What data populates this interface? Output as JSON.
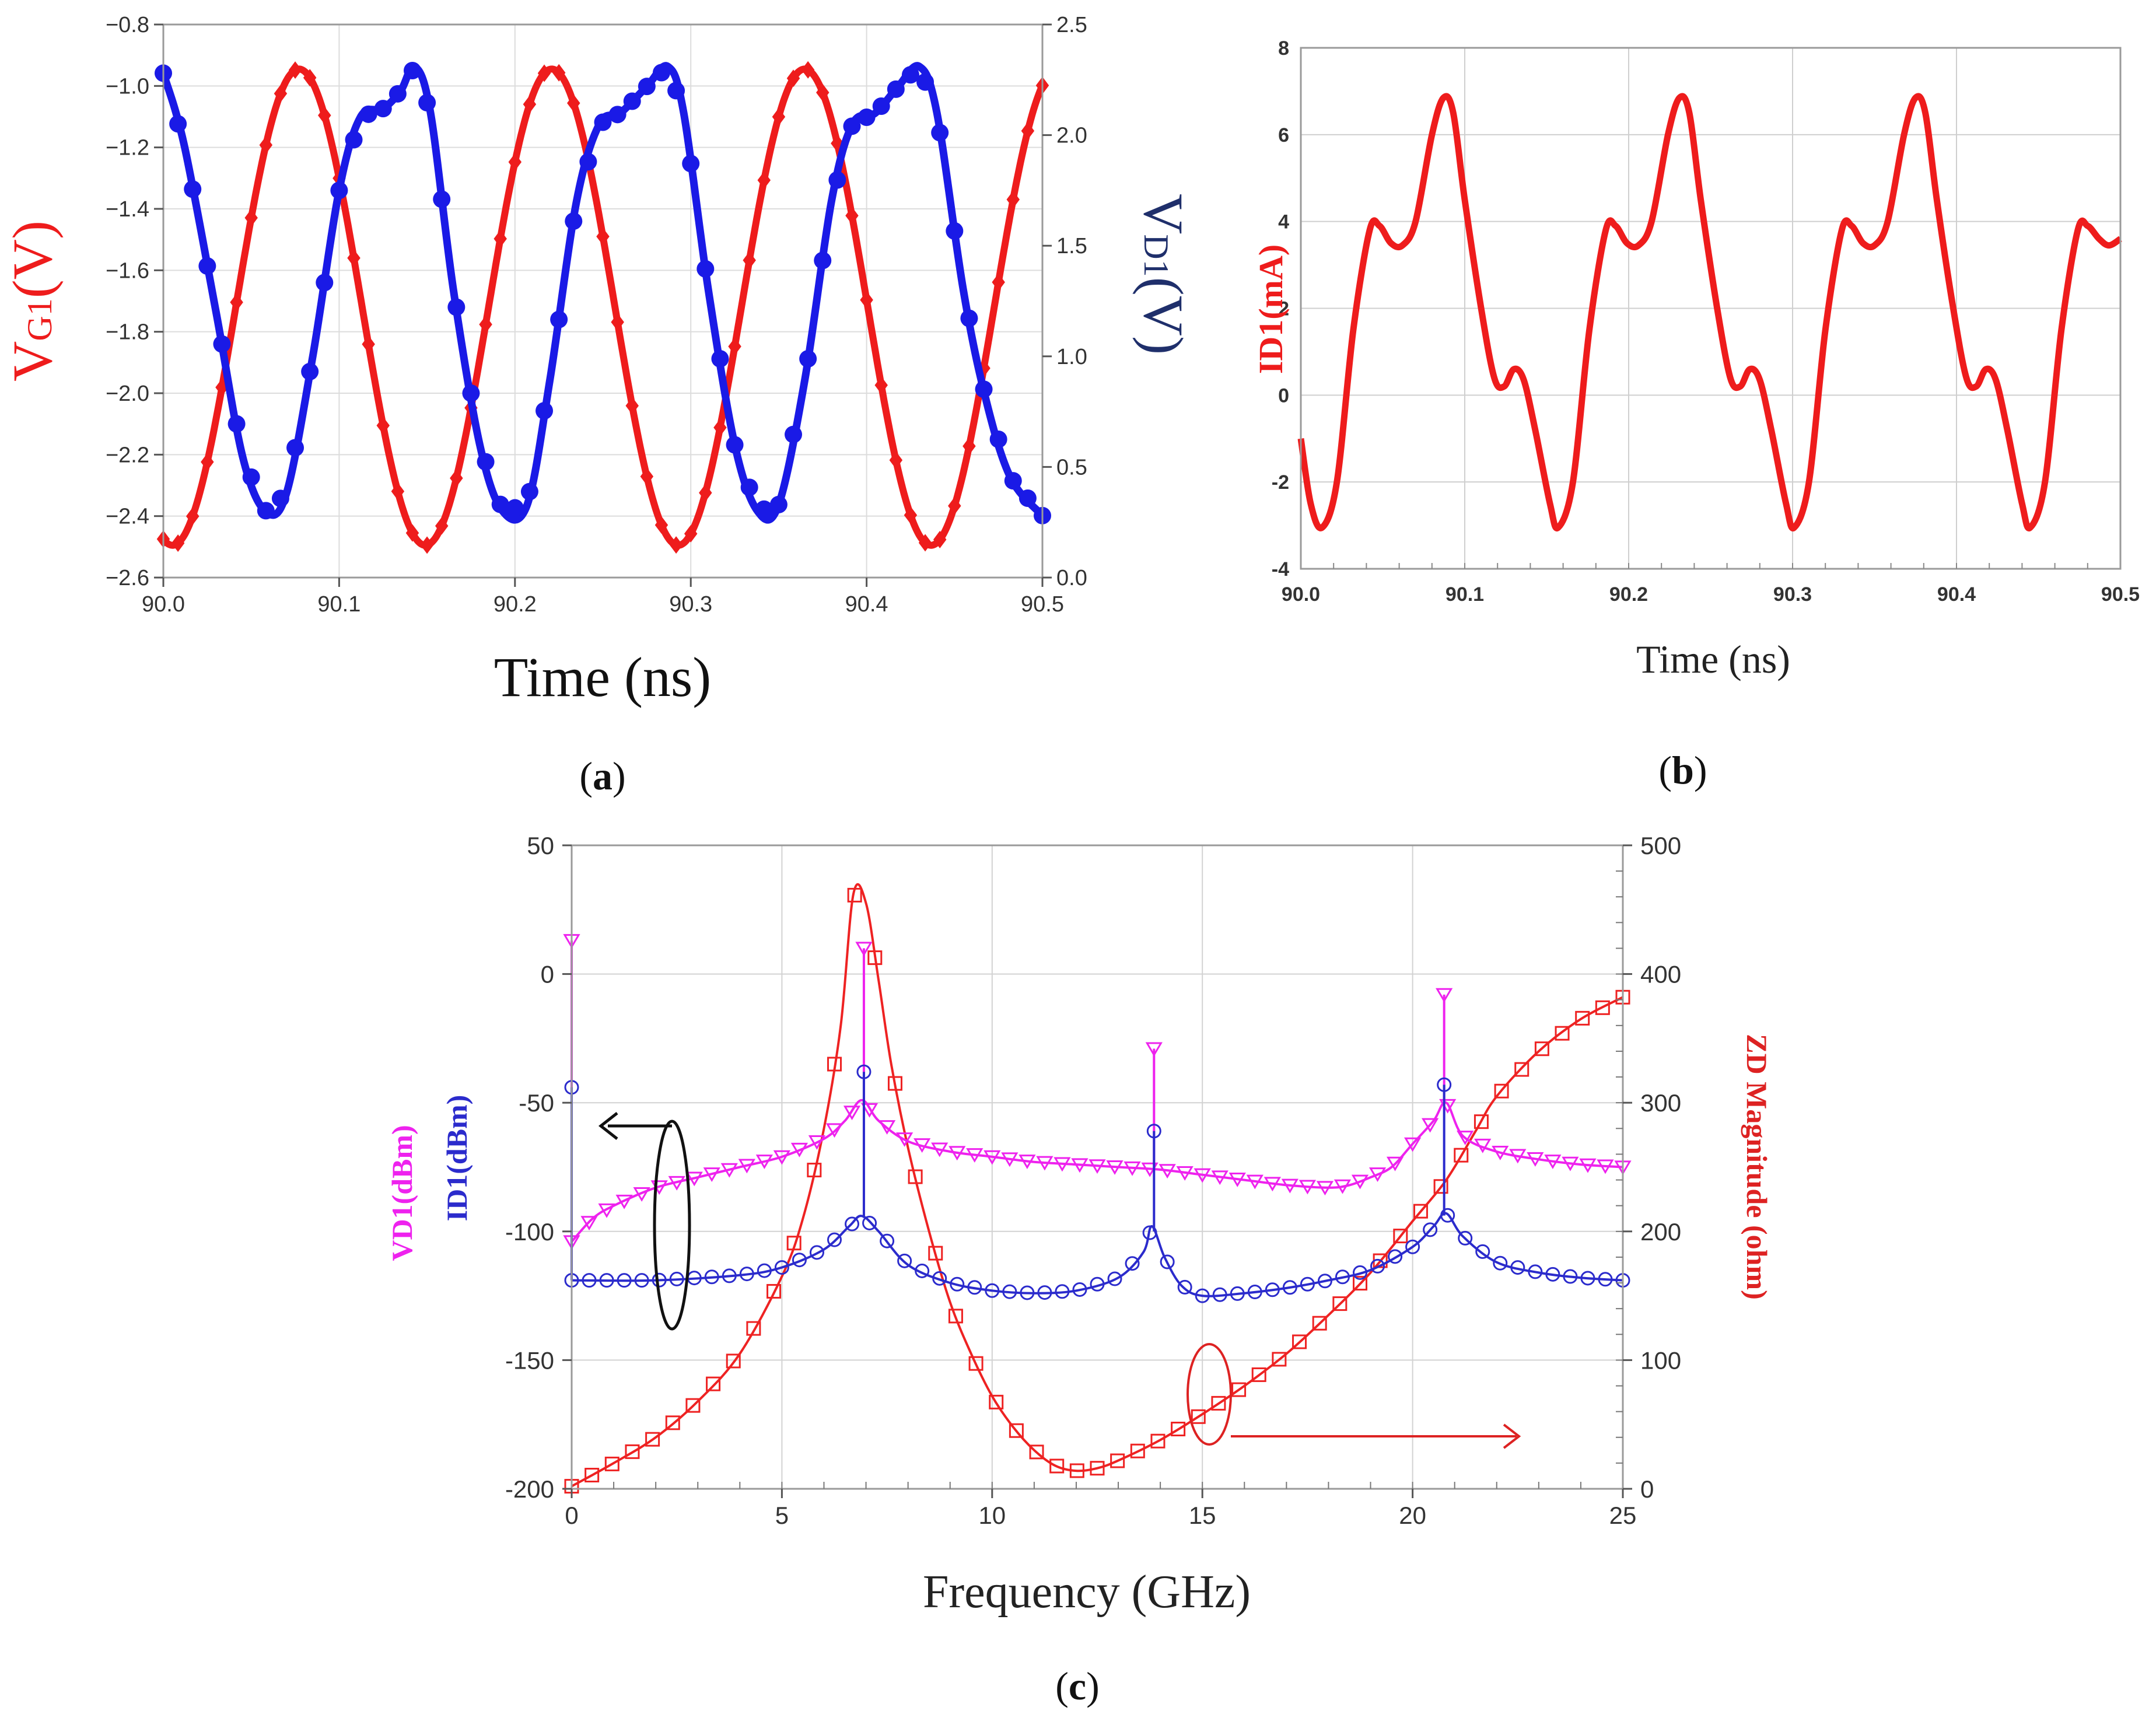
{
  "chart_data": [
    {
      "id": "a",
      "type": "line",
      "panel_label_open": "(",
      "panel_label_letter": "a",
      "panel_label_close": ")",
      "xlabel": "Time (ns)",
      "ylabel_left": {
        "main": "V",
        "sub": "G1",
        "tail": "(V)"
      },
      "ylabel_right": {
        "main": "V",
        "sub": "D1",
        "tail": "(V)"
      },
      "xlim": [
        90.0,
        90.5
      ],
      "ylim_left": [
        -2.6,
        -0.8
      ],
      "ylim_right": [
        0.0,
        2.5
      ],
      "x_ticks": [
        "90.0",
        "90.1",
        "90.2",
        "90.3",
        "90.4",
        "90.5"
      ],
      "y_ticks_left": [
        "−2.6",
        "−2.4",
        "−2.2",
        "−2.0",
        "−1.8",
        "−1.6",
        "−1.4",
        "−1.2",
        "−1.0",
        "−0.8"
      ],
      "y_ticks_right": [
        "0.0",
        "0.5",
        "1.0",
        "1.5",
        "2.0",
        "2.5"
      ],
      "series": [
        {
          "name": "VG1",
          "axis": "left",
          "color": "#ee1c1c",
          "marker": "diamond",
          "model": {
            "type": "sine",
            "offset": -1.72,
            "amp": 0.775,
            "period": 0.1438,
            "phase_x": 90.0,
            "phase_rad": -1.8
          }
        },
        {
          "name": "VD1",
          "axis": "right",
          "color": "#1a1ae6",
          "marker": "circle",
          "points": [
            [
              90.0,
              2.28
            ],
            [
              90.012,
              1.95
            ],
            [
              90.03,
              1.2
            ],
            [
              90.045,
              0.55
            ],
            [
              90.058,
              0.3
            ],
            [
              90.07,
              0.38
            ],
            [
              90.085,
              1.0
            ],
            [
              90.1,
              1.75
            ],
            [
              90.112,
              2.08
            ],
            [
              90.125,
              2.12
            ],
            [
              90.135,
              2.2
            ],
            [
              90.143,
              2.31
            ],
            [
              90.152,
              2.1
            ],
            [
              90.165,
              1.3
            ],
            [
              90.18,
              0.6
            ],
            [
              90.193,
              0.3
            ],
            [
              90.207,
              0.33
            ],
            [
              90.22,
              0.9
            ],
            [
              90.235,
              1.7
            ],
            [
              90.248,
              2.05
            ],
            [
              90.26,
              2.1
            ],
            [
              90.275,
              2.22
            ],
            [
              90.287,
              2.31
            ],
            [
              90.296,
              2.1
            ],
            [
              90.31,
              1.3
            ],
            [
              90.325,
              0.6
            ],
            [
              90.338,
              0.3
            ],
            [
              90.35,
              0.33
            ],
            [
              90.365,
              0.9
            ],
            [
              90.38,
              1.7
            ],
            [
              90.392,
              2.05
            ],
            [
              90.405,
              2.1
            ],
            [
              90.418,
              2.22
            ],
            [
              90.43,
              2.31
            ],
            [
              90.44,
              2.1
            ],
            [
              90.455,
              1.3
            ],
            [
              90.468,
              0.8
            ],
            [
              90.482,
              0.45
            ],
            [
              90.5,
              0.28
            ]
          ]
        }
      ]
    },
    {
      "id": "b",
      "type": "line",
      "panel_label_open": "(",
      "panel_label_letter": "b",
      "panel_label_close": ")",
      "xlabel": "Time (ns)",
      "ylabel": "ID1(mA)",
      "xlim": [
        90.0,
        90.5
      ],
      "ylim": [
        -4,
        8
      ],
      "x_ticks": [
        "90.0",
        "90.1",
        "90.2",
        "90.3",
        "90.4",
        "90.5"
      ],
      "y_ticks": [
        "-4",
        "-2",
        "0",
        "2",
        "4",
        "6",
        "8"
      ],
      "series": [
        {
          "name": "ID1",
          "color": "#ee1c1c",
          "points": [
            [
              90.0,
              -1.0
            ],
            [
              90.006,
              -2.5
            ],
            [
              90.013,
              -3.05
            ],
            [
              90.022,
              -2.0
            ],
            [
              90.032,
              1.5
            ],
            [
              90.042,
              3.8
            ],
            [
              90.048,
              3.9
            ],
            [
              90.055,
              3.5
            ],
            [
              90.062,
              3.45
            ],
            [
              90.07,
              4.0
            ],
            [
              90.08,
              6.0
            ],
            [
              90.087,
              6.85
            ],
            [
              90.093,
              6.5
            ],
            [
              90.1,
              4.5
            ],
            [
              90.11,
              2.0
            ],
            [
              90.118,
              0.4
            ],
            [
              90.124,
              0.2
            ],
            [
              90.13,
              0.6
            ],
            [
              90.136,
              0.35
            ],
            [
              90.143,
              -0.8
            ],
            [
              90.152,
              -2.5
            ],
            [
              90.157,
              -3.05
            ],
            [
              90.166,
              -2.0
            ],
            [
              90.176,
              1.5
            ],
            [
              90.186,
              3.8
            ],
            [
              90.192,
              3.9
            ],
            [
              90.199,
              3.5
            ],
            [
              90.206,
              3.45
            ],
            [
              90.214,
              4.0
            ],
            [
              90.224,
              6.0
            ],
            [
              90.231,
              6.85
            ],
            [
              90.237,
              6.5
            ],
            [
              90.244,
              4.5
            ],
            [
              90.254,
              2.0
            ],
            [
              90.262,
              0.4
            ],
            [
              90.268,
              0.2
            ],
            [
              90.274,
              0.6
            ],
            [
              90.28,
              0.35
            ],
            [
              90.287,
              -0.8
            ],
            [
              90.296,
              -2.5
            ],
            [
              90.301,
              -3.05
            ],
            [
              90.31,
              -2.0
            ],
            [
              90.32,
              1.5
            ],
            [
              90.33,
              3.8
            ],
            [
              90.336,
              3.9
            ],
            [
              90.343,
              3.5
            ],
            [
              90.35,
              3.45
            ],
            [
              90.358,
              4.0
            ],
            [
              90.368,
              6.0
            ],
            [
              90.375,
              6.85
            ],
            [
              90.381,
              6.5
            ],
            [
              90.388,
              4.5
            ],
            [
              90.398,
              2.0
            ],
            [
              90.406,
              0.4
            ],
            [
              90.412,
              0.2
            ],
            [
              90.418,
              0.6
            ],
            [
              90.424,
              0.35
            ],
            [
              90.431,
              -0.8
            ],
            [
              90.44,
              -2.5
            ],
            [
              90.445,
              -3.05
            ],
            [
              90.454,
              -2.0
            ],
            [
              90.464,
              1.5
            ],
            [
              90.474,
              3.8
            ],
            [
              90.48,
              3.9
            ],
            [
              90.487,
              3.6
            ],
            [
              90.493,
              3.45
            ],
            [
              90.5,
              3.6
            ]
          ]
        }
      ]
    },
    {
      "id": "c",
      "type": "line",
      "panel_label_open": "(",
      "panel_label_letter": "c",
      "panel_label_close": ")",
      "xlabel": "Frequency (GHz)",
      "ylabel_left_1": "VD1(dBm)",
      "ylabel_left_2": "ID1(dBm)",
      "ylabel_right": "ZD Magnitude (ohm)",
      "xlim": [
        0,
        25
      ],
      "ylim_left": [
        -200,
        50
      ],
      "ylim_right": [
        0,
        500
      ],
      "x_ticks": [
        "0",
        "5",
        "10",
        "15",
        "20",
        "25"
      ],
      "y_ticks_left": [
        "-200",
        "-150",
        "-100",
        "-50",
        "0",
        "50"
      ],
      "y_ticks_right": [
        "0",
        "100",
        "200",
        "300",
        "400",
        "500"
      ],
      "series": [
        {
          "name": "VD1",
          "axis": "left",
          "color": "#ee22ee",
          "marker": "triangle-down",
          "points": [
            [
              0.0,
              -104
            ],
            [
              0.5,
              -95
            ],
            [
              1.0,
              -90
            ],
            [
              2.0,
              -83
            ],
            [
              3.0,
              -79
            ],
            [
              4.0,
              -75
            ],
            [
              5.0,
              -71
            ],
            [
              6.0,
              -64
            ],
            [
              6.5,
              -57
            ],
            [
              6.9,
              -49
            ],
            [
              7.3,
              -57
            ],
            [
              8.0,
              -65
            ],
            [
              9.0,
              -69
            ],
            [
              10.0,
              -71
            ],
            [
              11.0,
              -73
            ],
            [
              12.0,
              -74
            ],
            [
              13.0,
              -75
            ],
            [
              14.0,
              -76
            ],
            [
              15.0,
              -78
            ],
            [
              16.0,
              -80
            ],
            [
              17.0,
              -82
            ],
            [
              18.0,
              -83
            ],
            [
              18.5,
              -82
            ],
            [
              19.0,
              -79
            ],
            [
              19.5,
              -75
            ],
            [
              20.0,
              -66
            ],
            [
              20.5,
              -57
            ],
            [
              20.8,
              -50
            ],
            [
              21.2,
              -63
            ],
            [
              22.0,
              -69
            ],
            [
              23.0,
              -72
            ],
            [
              24.0,
              -74
            ],
            [
              25.0,
              -75
            ]
          ],
          "spikes": [
            {
              "x": 0.0,
              "y": 13
            },
            {
              "x": 6.95,
              "y": 10
            },
            {
              "x": 13.85,
              "y": -29
            },
            {
              "x": 20.75,
              "y": -8
            }
          ]
        },
        {
          "name": "ID1",
          "axis": "left",
          "color": "#2b2bcc",
          "marker": "circle",
          "points": [
            [
              0.0,
              -119
            ],
            [
              2.0,
              -119
            ],
            [
              4.0,
              -117
            ],
            [
              5.0,
              -114
            ],
            [
              6.0,
              -107
            ],
            [
              6.6,
              -98
            ],
            [
              6.9,
              -94
            ],
            [
              7.3,
              -100
            ],
            [
              8.0,
              -113
            ],
            [
              9.0,
              -120
            ],
            [
              10.0,
              -123
            ],
            [
              11.0,
              -124
            ],
            [
              12.0,
              -123
            ],
            [
              13.0,
              -118
            ],
            [
              13.6,
              -108
            ],
            [
              13.8,
              -98
            ],
            [
              14.1,
              -110
            ],
            [
              14.5,
              -121
            ],
            [
              15.0,
              -125
            ],
            [
              16.0,
              -124
            ],
            [
              17.0,
              -122
            ],
            [
              18.0,
              -119
            ],
            [
              19.0,
              -115
            ],
            [
              20.0,
              -106
            ],
            [
              20.5,
              -98
            ],
            [
              20.8,
              -93
            ],
            [
              21.2,
              -102
            ],
            [
              22.0,
              -112
            ],
            [
              23.0,
              -116
            ],
            [
              24.0,
              -118
            ],
            [
              25.0,
              -119
            ]
          ],
          "spikes": [
            {
              "x": 0.0,
              "y": -44
            },
            {
              "x": 6.95,
              "y": -38
            },
            {
              "x": 13.85,
              "y": -61
            },
            {
              "x": 20.75,
              "y": -43
            }
          ]
        },
        {
          "name": "ZD Magnitude",
          "axis": "right",
          "color": "#ee2222",
          "marker": "square",
          "points": [
            [
              0.0,
              2
            ],
            [
              1.0,
              20
            ],
            [
              2.0,
              40
            ],
            [
              3.0,
              68
            ],
            [
              4.0,
              105
            ],
            [
              5.0,
              165
            ],
            [
              5.5,
              210
            ],
            [
              6.0,
              280
            ],
            [
              6.4,
              360
            ],
            [
              6.7,
              462
            ],
            [
              7.0,
              455
            ],
            [
              7.3,
              395
            ],
            [
              7.6,
              330
            ],
            [
              8.0,
              265
            ],
            [
              8.5,
              200
            ],
            [
              9.0,
              145
            ],
            [
              9.5,
              105
            ],
            [
              10.0,
              72
            ],
            [
              10.5,
              48
            ],
            [
              11.0,
              30
            ],
            [
              11.5,
              18
            ],
            [
              12.0,
              14
            ],
            [
              12.5,
              16
            ],
            [
              13.0,
              22
            ],
            [
              14.0,
              38
            ],
            [
              15.0,
              58
            ],
            [
              16.0,
              80
            ],
            [
              17.0,
              105
            ],
            [
              18.0,
              135
            ],
            [
              19.0,
              168
            ],
            [
              20.0,
              208
            ],
            [
              20.8,
              240
            ],
            [
              21.5,
              278
            ],
            [
              22.0,
              305
            ],
            [
              23.0,
              340
            ],
            [
              24.0,
              365
            ],
            [
              25.0,
              382
            ]
          ]
        }
      ],
      "annotations": [
        "left-arrow toward left axis (VD1, ID1)",
        "right-arrow toward right axis (ZD)"
      ]
    }
  ]
}
